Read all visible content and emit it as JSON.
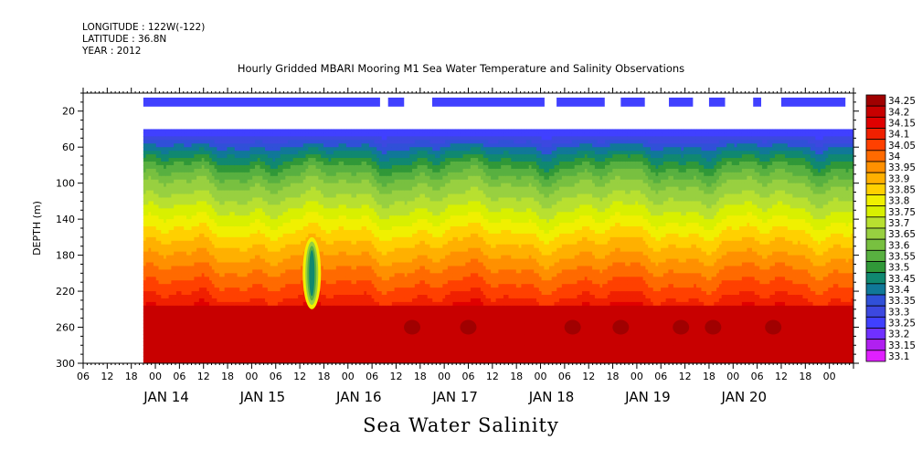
{
  "header": {
    "longitude": "LONGITUDE : 122W(-122)",
    "latitude": "LATITUDE : 36.8N",
    "year": "YEAR : 2012",
    "title": "Hourly Gridded MBARI Mooring M1 Sea Water Temperature and Salinity Observations",
    "variable_title": "Sea Water Salinity"
  },
  "chart_data": {
    "type": "heatmap",
    "title": "Hourly Gridded MBARI Mooring M1 Sea Water Temperature and Salinity Observations",
    "subtitle": "Sea Water Salinity",
    "xlabel": "",
    "ylabel": "DEPTH (m)",
    "ylim": [
      300,
      0
    ],
    "y_ticks": [
      20,
      60,
      100,
      140,
      180,
      220,
      260,
      300
    ],
    "x_range_hours": [
      "2012-01-13 06:00",
      "2012-01-21 06:00"
    ],
    "x_tick_labels": [
      "06",
      "12",
      "18",
      "00",
      "06",
      "12",
      "18",
      "00",
      "06",
      "12",
      "18",
      "00",
      "06",
      "12",
      "18",
      "00",
      "06",
      "12",
      "18",
      "00",
      "06",
      "12",
      "18",
      "00",
      "06",
      "12",
      "18",
      "00",
      "06",
      "12",
      "18",
      "00"
    ],
    "x_day_labels": [
      "JAN 14",
      "JAN 15",
      "JAN 16",
      "JAN 17",
      "JAN 18",
      "JAN 19",
      "JAN 20"
    ],
    "colorbar_levels": [
      "34.25",
      "34.2",
      "34.15",
      "34.1",
      "34.05",
      "34",
      "33.95",
      "33.9",
      "33.85",
      "33.8",
      "33.75",
      "33.7",
      "33.65",
      "33.6",
      "33.55",
      "33.5",
      "33.45",
      "33.4",
      "33.35",
      "33.3",
      "33.25",
      "33.2",
      "33.15",
      "33.1"
    ],
    "colorbar_colors": [
      "#a00000",
      "#c80000",
      "#e00000",
      "#f02000",
      "#ff4000",
      "#ff6a00",
      "#ff9000",
      "#ffb000",
      "#ffd000",
      "#f0f000",
      "#d8f000",
      "#b8e030",
      "#98d040",
      "#78c040",
      "#58b040",
      "#309838",
      "#108870",
      "#107898",
      "#3050d8",
      "#3c48e0",
      "#4040ff",
      "#7030ff",
      "#b020f0",
      "#e020ff"
    ],
    "surface_band": {
      "depth_m": 10,
      "salinity_approx": 33.25,
      "segments_dates": [
        [
          "2012-01-13 21:00",
          "2012-01-16 08:00"
        ],
        [
          "2012-01-16 10:00",
          "2012-01-16 14:00"
        ],
        [
          "2012-01-16 21:00",
          "2012-01-18 01:00"
        ],
        [
          "2012-01-18 04:00",
          "2012-01-18 16:00"
        ],
        [
          "2012-01-18 20:00",
          "2012-01-19 02:00"
        ],
        [
          "2012-01-19 08:00",
          "2012-01-19 14:00"
        ],
        [
          "2012-01-19 18:00",
          "2012-01-19 22:00"
        ],
        [
          "2012-01-20 05:00",
          "2012-01-20 07:00"
        ],
        [
          "2012-01-20 12:00",
          "2012-01-21 04:00"
        ]
      ]
    },
    "profile_depths_m": [
      40,
      60,
      80,
      100,
      120,
      140,
      160,
      180,
      200,
      220,
      240,
      260,
      280,
      300
    ],
    "profile_salinity_mean": [
      33.25,
      33.42,
      33.55,
      33.65,
      33.72,
      33.8,
      33.88,
      33.95,
      34.02,
      34.08,
      34.16,
      34.2,
      34.2,
      34.22
    ],
    "features": [
      {
        "label": "low-salinity intrusion",
        "time": "2012-01-15 15:00",
        "depth_range_m": [
          160,
          240
        ],
        "salinity_min": 33.45
      },
      {
        "label": "high-salinity patches",
        "depth_m": 260,
        "salinity_max": 34.25
      }
    ]
  }
}
